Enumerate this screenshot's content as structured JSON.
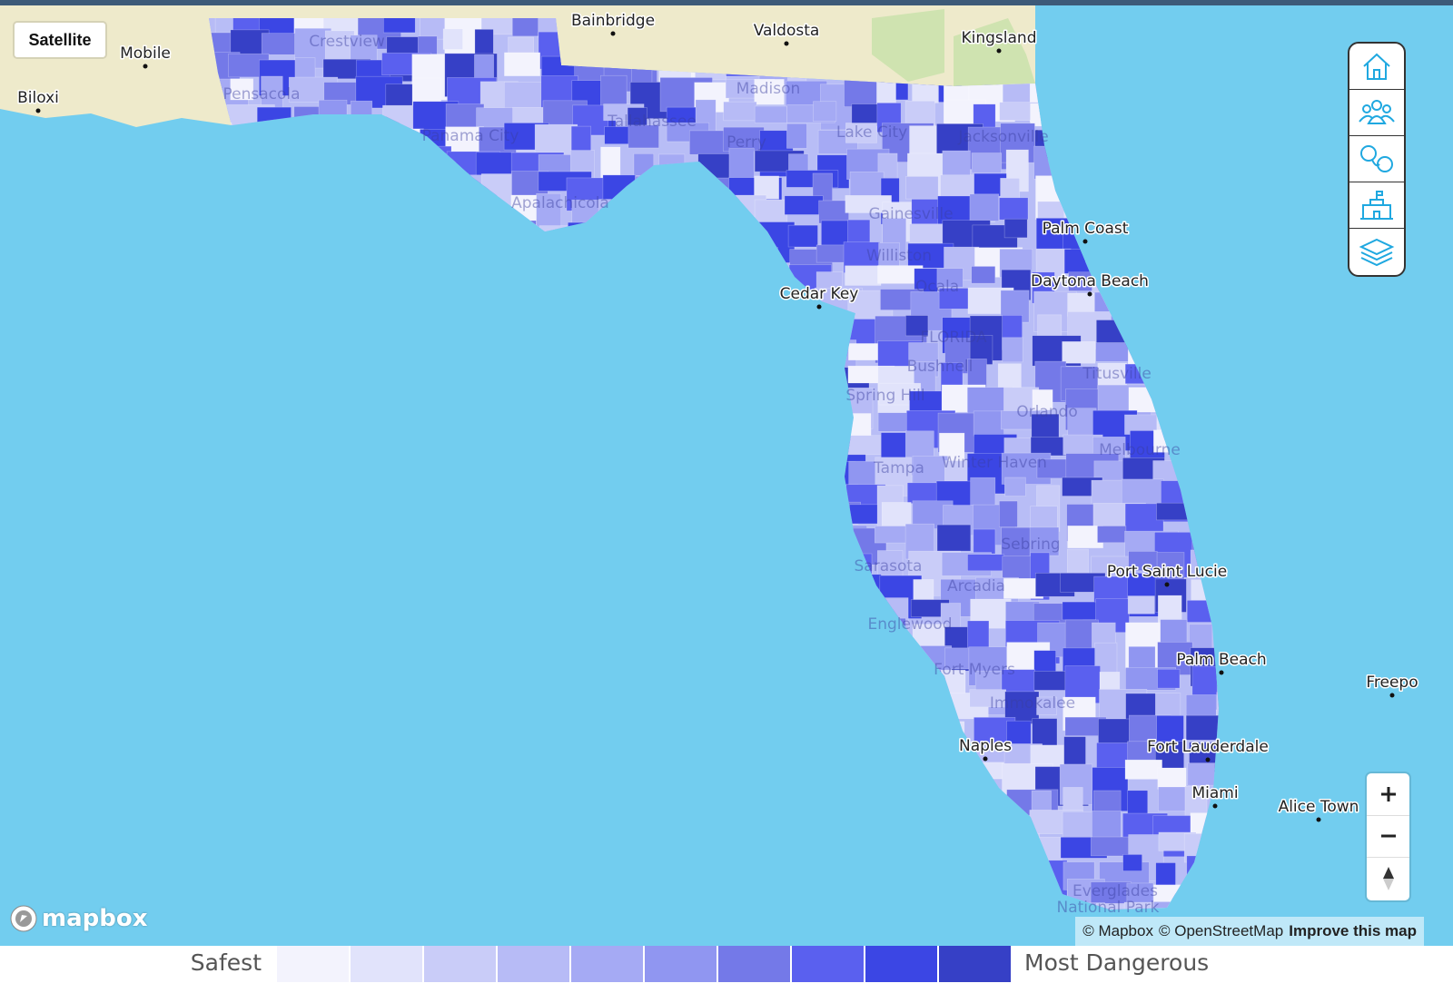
{
  "map": {
    "button": "Satellite",
    "places": [
      "Bainbridge",
      "Valdosta",
      "Kingsland",
      "Mobile",
      "Biloxi",
      "Crestview",
      "Pensacola",
      "Panama City",
      "Tallahassee",
      "Madison",
      "Apalachicola",
      "Perry",
      "Lake City",
      "Jacksonville",
      "Gainesville",
      "Palm Coast",
      "Williston",
      "Cedar Key",
      "Ocala",
      "Daytona Beach",
      "FLORIDA",
      "Bushnell",
      "Titusville",
      "Spring Hill",
      "Orlando",
      "Melbourne",
      "Tampa",
      "Winter Haven",
      "Sebring",
      "Sarasota",
      "Port Saint Lucie",
      "Arcadia",
      "Englewood",
      "Fort Myers",
      "Palm Beach",
      "Immokalee",
      "Naples",
      "Fort Lauderdale",
      "Miami",
      "Alice Town",
      "Freepo",
      "Everglades",
      "National Park"
    ],
    "attribution": [
      "© Mapbox",
      "© OpenStreetMap",
      "Improve this map"
    ],
    "logo": "mapbox",
    "legend": {
      "low": "Safest",
      "high": "Most Dangerous",
      "colors": [
        "#f3f3fd",
        "#e1e3fb",
        "#c9ccf8",
        "#b7bbf6",
        "#a5aaf4",
        "#9096f1",
        "#7479e8",
        "#5a60ef",
        "#3b46e4",
        "#3640c6"
      ]
    }
  }
}
